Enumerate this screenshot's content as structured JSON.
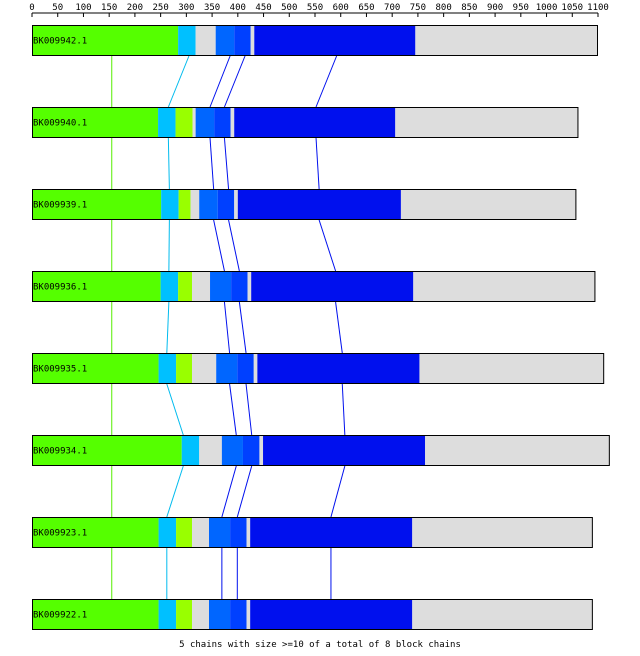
{
  "axis": {
    "min": 0,
    "max": 1100,
    "step": 50,
    "tick_labels": [
      "0",
      "50",
      "100",
      "150",
      "200",
      "250",
      "300",
      "350",
      "400",
      "450",
      "500",
      "550",
      "600",
      "650",
      "700",
      "750",
      "800",
      "850",
      "900",
      "950",
      "1000",
      "1050",
      "1100"
    ]
  },
  "colors": {
    "green": "#55ff00",
    "cyan": "#00c0ff",
    "light_green": "#99ff00",
    "grey": "#dddddd",
    "mid_blue": "#0066ff",
    "med_blue": "#0040ff",
    "blue": "#0010ee",
    "link_green": "#55ee00",
    "link_cyan": "#00bbee",
    "link_blue": "#0010ee"
  },
  "sequences": [
    {
      "name": "BK009942.1",
      "length": 1100,
      "segments": [
        {
          "start": 0,
          "end": 284,
          "color": "green"
        },
        {
          "start": 284,
          "end": 318,
          "color": "cyan"
        },
        {
          "start": 318,
          "end": 357,
          "color": "grey"
        },
        {
          "start": 357,
          "end": 393,
          "color": "mid_blue"
        },
        {
          "start": 393,
          "end": 425,
          "color": "med_blue"
        },
        {
          "start": 425,
          "end": 432,
          "color": "grey"
        },
        {
          "start": 432,
          "end": 745,
          "color": "blue"
        },
        {
          "start": 745,
          "end": 1100,
          "color": "grey"
        }
      ]
    },
    {
      "name": "BK009940.1",
      "length": 1062,
      "segments": [
        {
          "start": 0,
          "end": 245,
          "color": "green"
        },
        {
          "start": 245,
          "end": 279,
          "color": "cyan"
        },
        {
          "start": 279,
          "end": 312,
          "color": "light_green"
        },
        {
          "start": 312,
          "end": 318,
          "color": "grey"
        },
        {
          "start": 318,
          "end": 354,
          "color": "mid_blue"
        },
        {
          "start": 354,
          "end": 386,
          "color": "med_blue"
        },
        {
          "start": 386,
          "end": 393,
          "color": "grey"
        },
        {
          "start": 393,
          "end": 706,
          "color": "blue"
        },
        {
          "start": 706,
          "end": 1062,
          "color": "grey"
        }
      ]
    },
    {
      "name": "BK009939.1",
      "length": 1058,
      "segments": [
        {
          "start": 0,
          "end": 251,
          "color": "green"
        },
        {
          "start": 251,
          "end": 285,
          "color": "cyan"
        },
        {
          "start": 285,
          "end": 308,
          "color": "light_green"
        },
        {
          "start": 308,
          "end": 325,
          "color": "grey"
        },
        {
          "start": 325,
          "end": 361,
          "color": "mid_blue"
        },
        {
          "start": 361,
          "end": 393,
          "color": "med_blue"
        },
        {
          "start": 393,
          "end": 400,
          "color": "grey"
        },
        {
          "start": 400,
          "end": 717,
          "color": "blue"
        },
        {
          "start": 717,
          "end": 1058,
          "color": "grey"
        }
      ]
    },
    {
      "name": "BK009936.1",
      "length": 1095,
      "segments": [
        {
          "start": 0,
          "end": 250,
          "color": "green"
        },
        {
          "start": 250,
          "end": 284,
          "color": "cyan"
        },
        {
          "start": 284,
          "end": 311,
          "color": "light_green"
        },
        {
          "start": 311,
          "end": 346,
          "color": "grey"
        },
        {
          "start": 346,
          "end": 387,
          "color": "mid_blue"
        },
        {
          "start": 387,
          "end": 419,
          "color": "med_blue"
        },
        {
          "start": 419,
          "end": 426,
          "color": "grey"
        },
        {
          "start": 426,
          "end": 741,
          "color": "blue"
        },
        {
          "start": 741,
          "end": 1095,
          "color": "grey"
        }
      ]
    },
    {
      "name": "BK009935.1",
      "length": 1112,
      "segments": [
        {
          "start": 0,
          "end": 246,
          "color": "green"
        },
        {
          "start": 246,
          "end": 280,
          "color": "cyan"
        },
        {
          "start": 280,
          "end": 311,
          "color": "light_green"
        },
        {
          "start": 311,
          "end": 358,
          "color": "grey"
        },
        {
          "start": 358,
          "end": 399,
          "color": "mid_blue"
        },
        {
          "start": 399,
          "end": 431,
          "color": "med_blue"
        },
        {
          "start": 431,
          "end": 438,
          "color": "grey"
        },
        {
          "start": 438,
          "end": 753,
          "color": "blue"
        },
        {
          "start": 753,
          "end": 1112,
          "color": "grey"
        }
      ]
    },
    {
      "name": "BK009934.1",
      "length": 1123,
      "segments": [
        {
          "start": 0,
          "end": 291,
          "color": "green"
        },
        {
          "start": 291,
          "end": 325,
          "color": "cyan"
        },
        {
          "start": 325,
          "end": 369,
          "color": "grey"
        },
        {
          "start": 369,
          "end": 410,
          "color": "mid_blue"
        },
        {
          "start": 410,
          "end": 442,
          "color": "med_blue"
        },
        {
          "start": 442,
          "end": 449,
          "color": "grey"
        },
        {
          "start": 449,
          "end": 764,
          "color": "blue"
        },
        {
          "start": 764,
          "end": 1123,
          "color": "grey"
        }
      ]
    },
    {
      "name": "BK009923.1",
      "length": 1090,
      "segments": [
        {
          "start": 0,
          "end": 246,
          "color": "green"
        },
        {
          "start": 246,
          "end": 280,
          "color": "cyan"
        },
        {
          "start": 280,
          "end": 311,
          "color": "light_green"
        },
        {
          "start": 311,
          "end": 344,
          "color": "grey"
        },
        {
          "start": 344,
          "end": 385,
          "color": "mid_blue"
        },
        {
          "start": 385,
          "end": 417,
          "color": "med_blue"
        },
        {
          "start": 417,
          "end": 424,
          "color": "grey"
        },
        {
          "start": 424,
          "end": 739,
          "color": "blue"
        },
        {
          "start": 739,
          "end": 1090,
          "color": "grey"
        }
      ]
    },
    {
      "name": "BK009922.1",
      "length": 1090,
      "segments": [
        {
          "start": 0,
          "end": 246,
          "color": "green"
        },
        {
          "start": 246,
          "end": 280,
          "color": "cyan"
        },
        {
          "start": 280,
          "end": 311,
          "color": "light_green"
        },
        {
          "start": 311,
          "end": 344,
          "color": "grey"
        },
        {
          "start": 344,
          "end": 385,
          "color": "mid_blue"
        },
        {
          "start": 385,
          "end": 417,
          "color": "med_blue"
        },
        {
          "start": 417,
          "end": 424,
          "color": "grey"
        },
        {
          "start": 424,
          "end": 739,
          "color": "blue"
        },
        {
          "start": 739,
          "end": 1090,
          "color": "grey"
        }
      ]
    }
  ],
  "chains": [
    {
      "color": "link_green",
      "positions": [
        155,
        155,
        155,
        155,
        155,
        155,
        155,
        155
      ]
    },
    {
      "color": "link_cyan",
      "positions": [
        305,
        265,
        267,
        266,
        262,
        294,
        262,
        262
      ]
    },
    {
      "color": "link_blue",
      "positions": [
        385,
        346,
        353,
        374,
        384,
        397,
        369,
        369
      ]
    },
    {
      "color": "link_blue",
      "positions": [
        414,
        374,
        382,
        403,
        416,
        427,
        399,
        399
      ]
    },
    {
      "color": "link_blue",
      "positions": [
        592,
        552,
        558,
        590,
        603,
        608,
        581,
        581
      ]
    }
  ],
  "footer": "5 chains with size >=10 of a total of 8 block chains"
}
